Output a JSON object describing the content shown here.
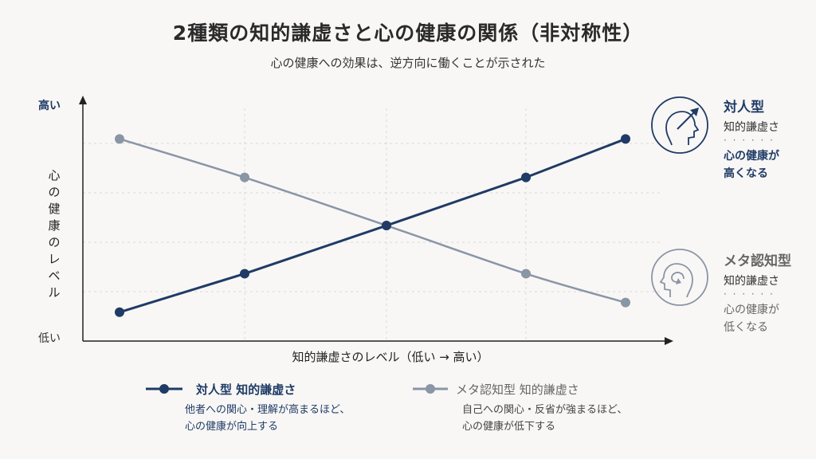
{
  "title": "2種類の知的謙虚さと心の健康の関係（非対称性）",
  "subtitle": "心の健康への効果は、逆方向に働くことが示された",
  "chart_data": {
    "type": "line",
    "xlabel": "知的謙虚さのレベル（低い → 高い）",
    "ylabel": "心の健康のレベル",
    "y_high_label": "高い",
    "y_low_label": "低い",
    "x": [
      0,
      1,
      2,
      3,
      4
    ],
    "ylim": [
      0,
      5
    ],
    "grid": true,
    "series": [
      {
        "name": "対人型 知的謙虚さ",
        "color": "#1f3b66",
        "values": [
          0.6,
          1.4,
          2.4,
          3.4,
          4.2
        ]
      },
      {
        "name": "メタ認知型 知的謙虚さ",
        "color": "#8a95a6",
        "values": [
          4.2,
          3.4,
          2.4,
          1.4,
          0.8
        ]
      }
    ]
  },
  "side": {
    "interpersonal": {
      "title": "対人型",
      "sub": "知的謙虚さ",
      "dots": "· · · · · ·",
      "result1": "心の健康が",
      "result2": "高くなる",
      "icon": "head-arrow-up-icon"
    },
    "metacognitive": {
      "title": "メタ認知型",
      "sub": "知的謙虚さ",
      "dots": "· · · · · ·",
      "result1": "心の健康が",
      "result2": "低くなる",
      "icon": "head-swirl-icon"
    }
  },
  "legend": {
    "interpersonal": {
      "label": "対人型 知的謙虚さ",
      "desc1": "他者への関心・理解が高まるほど、",
      "desc2": "心の健康が向上する"
    },
    "metacognitive": {
      "label": "メタ認知型 知的謙虚さ",
      "desc1": "自己への関心・反省が強まるほど、",
      "desc2": "心の健康が低下する"
    }
  },
  "colors": {
    "primary": "#1f3b66",
    "secondary": "#8a95a6",
    "background": "#f8f7f5"
  }
}
